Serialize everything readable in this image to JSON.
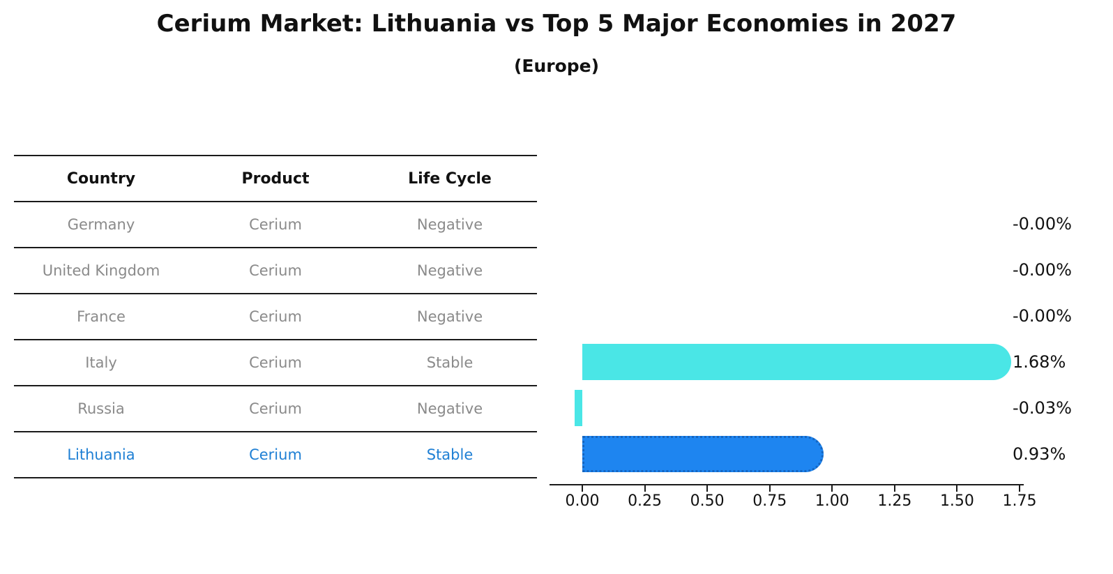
{
  "title": "Cerium Market: Lithuania vs Top 5 Major Economies in 2027",
  "subtitle": "(Europe)",
  "table": {
    "headers": [
      "Country",
      "Product",
      "Life Cycle"
    ],
    "rows": [
      {
        "country": "Germany",
        "product": "Cerium",
        "life_cycle": "Negative",
        "highlight": false
      },
      {
        "country": "United Kingdom",
        "product": "Cerium",
        "life_cycle": "Negative",
        "highlight": false
      },
      {
        "country": "France",
        "product": "Cerium",
        "life_cycle": "Negative",
        "highlight": false
      },
      {
        "country": "Italy",
        "product": "Cerium",
        "life_cycle": "Stable",
        "highlight": false
      },
      {
        "country": "Russia",
        "product": "Cerium",
        "life_cycle": "Negative",
        "highlight": false
      },
      {
        "country": "Lithuania",
        "product": "Cerium",
        "life_cycle": "Stable",
        "highlight": true
      }
    ]
  },
  "chart_data": {
    "type": "bar",
    "orientation": "horizontal",
    "title": "Cerium Market: Lithuania vs Top 5 Major Economies in 2027",
    "subtitle": "(Europe)",
    "categories": [
      "Germany",
      "United Kingdom",
      "France",
      "Italy",
      "Russia",
      "Lithuania"
    ],
    "values": [
      -0.0,
      -0.0,
      -0.0,
      1.68,
      -0.03,
      0.93
    ],
    "value_labels": [
      "-0.00%",
      "-0.00%",
      "-0.00%",
      "1.68%",
      "-0.03%",
      "0.93%"
    ],
    "highlight_index": 5,
    "x_tick_values": [
      0.0,
      0.25,
      0.5,
      0.75,
      1.0,
      1.25,
      1.5,
      1.75
    ],
    "x_tick_labels": [
      "0.00",
      "0.25",
      "0.50",
      "0.75",
      "1.00",
      "1.25",
      "1.50",
      "1.75"
    ],
    "xlim": [
      -0.13,
      1.77
    ],
    "grid": false,
    "legend": "none",
    "colors": {
      "default_bar": "#4ae6e6",
      "highlight_bar": "#1e85f0",
      "highlight_border": "#1565c0",
      "highlight_text": "#1e7fd4",
      "table_text": "#8a8a8a",
      "text": "#111111"
    }
  }
}
